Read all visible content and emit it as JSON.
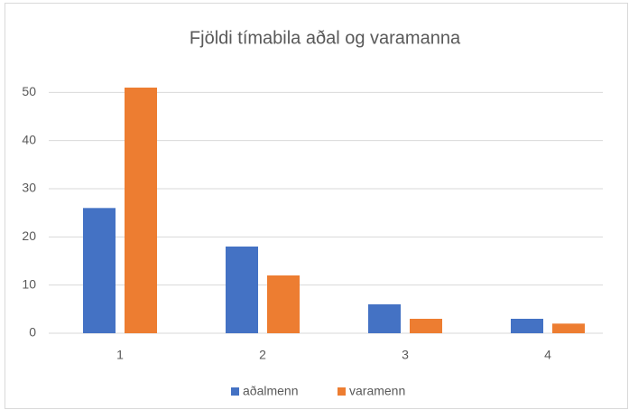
{
  "chart_data": {
    "type": "bar",
    "title": "Fjöldi tímabila aðal og varamanna",
    "categories": [
      "1",
      "2",
      "3",
      "4"
    ],
    "series": [
      {
        "name": "aðalmenn",
        "color": "#4472c4",
        "values": [
          26,
          18,
          6,
          3
        ]
      },
      {
        "name": "varamenn",
        "color": "#ed7d31",
        "values": [
          51,
          12,
          3,
          2
        ]
      }
    ],
    "ylim": [
      0,
      60
    ],
    "yticks": [
      0,
      10,
      20,
      30,
      40,
      50
    ],
    "grid": true,
    "legend": "bottom"
  }
}
